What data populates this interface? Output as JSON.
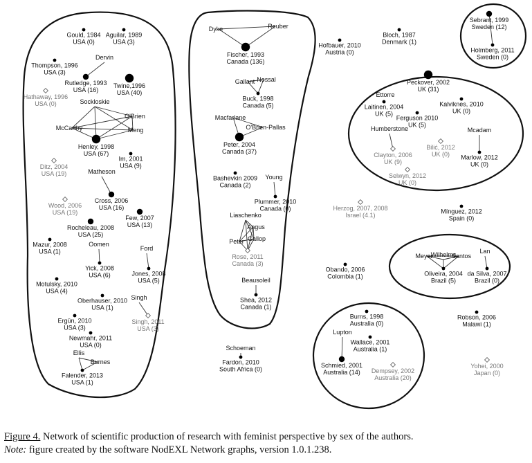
{
  "figure": {
    "groups": [
      {
        "nodes": [
          {
            "id": "gould",
            "lines": [
              "Gould, 1984",
              "USA (0)"
            ],
            "kind": "small"
          },
          {
            "id": "aguilar",
            "lines": [
              "Aguilar, 1989",
              "USA (3)"
            ],
            "kind": "small"
          },
          {
            "id": "thompson",
            "lines": [
              "Thompson, 1996",
              "USA (3)"
            ],
            "kind": "small"
          },
          {
            "id": "dervin",
            "lines": [
              "Dervin"
            ],
            "kind": "none"
          },
          {
            "id": "rutledge",
            "lines": [
              "Rutledge, 1993",
              "USA (16)"
            ],
            "kind": "medium"
          },
          {
            "id": "twine",
            "lines": [
              "Twine,1996",
              "USA (40)"
            ],
            "kind": "large"
          },
          {
            "id": "hathaway",
            "lines": [
              "Hathaway, 1996",
              "USA (0)"
            ],
            "kind": "diamond"
          },
          {
            "id": "sockloskie",
            "lines": [
              "Sockloskie"
            ],
            "kind": "none"
          },
          {
            "id": "obrien",
            "lines": [
              "O'Brien"
            ],
            "kind": "none"
          },
          {
            "id": "mccarthy",
            "lines": [
              "McCarthy"
            ],
            "kind": "none"
          },
          {
            "id": "meng",
            "lines": [
              "Meng"
            ],
            "kind": "none"
          },
          {
            "id": "henley",
            "lines": [
              "Henley, 1998",
              "USA (67)"
            ],
            "kind": "large"
          },
          {
            "id": "im",
            "lines": [
              "Im, 2001",
              "USA (9)"
            ],
            "kind": "small"
          },
          {
            "id": "ditz",
            "lines": [
              "Ditz, 2004",
              "USA (19)"
            ],
            "kind": "diamond"
          },
          {
            "id": "matheson",
            "lines": [
              "Matheson"
            ],
            "kind": "none"
          },
          {
            "id": "cross",
            "lines": [
              "Cross, 2006",
              "USA (16)"
            ],
            "kind": "medium"
          },
          {
            "id": "wood",
            "lines": [
              "Wood, 2006",
              "USA (19)"
            ],
            "kind": "diamond"
          },
          {
            "id": "few",
            "lines": [
              "Few, 2007",
              "USA (13)"
            ],
            "kind": "medium"
          },
          {
            "id": "rocheleau",
            "lines": [
              "Rocheleau, 2008",
              "USA (25)"
            ],
            "kind": "medium"
          },
          {
            "id": "mazur",
            "lines": [
              "Mazur, 2008",
              "USA (1)"
            ],
            "kind": "small"
          },
          {
            "id": "oomen",
            "lines": [
              "Oomen"
            ],
            "kind": "none"
          },
          {
            "id": "ford",
            "lines": [
              "Ford"
            ],
            "kind": "none"
          },
          {
            "id": "yick",
            "lines": [
              "Yick, 2008",
              "USA (6)"
            ],
            "kind": "small"
          },
          {
            "id": "jones",
            "lines": [
              "Jones, 2008",
              "USA (5)"
            ],
            "kind": "small"
          },
          {
            "id": "motulsky",
            "lines": [
              "Motulsky, 2010",
              "USA (4)"
            ],
            "kind": "small"
          },
          {
            "id": "oberhauser",
            "lines": [
              "Oberhauser, 2010",
              "USA (1)"
            ],
            "kind": "small"
          },
          {
            "id": "singhlabel",
            "lines": [
              "Singh"
            ],
            "kind": "none"
          },
          {
            "id": "ergun",
            "lines": [
              "Ergün, 2010",
              "USA (3)"
            ],
            "kind": "small"
          },
          {
            "id": "singh",
            "lines": [
              "Singh, 2011",
              "USA (3)"
            ],
            "kind": "diamond"
          },
          {
            "id": "newmahr",
            "lines": [
              "Newmahr, 2011",
              "USA (0)"
            ],
            "kind": "small"
          },
          {
            "id": "ellis",
            "lines": [
              "Ellis"
            ],
            "kind": "none"
          },
          {
            "id": "burnes",
            "lines": [
              "Burnes"
            ],
            "kind": "none"
          },
          {
            "id": "falender",
            "lines": [
              "Falender, 2013",
              "USA (1)"
            ],
            "kind": "small"
          }
        ]
      },
      {
        "nodes": [
          {
            "id": "dyke",
            "lines": [
              "Dyke"
            ],
            "kind": "none"
          },
          {
            "id": "reuber",
            "lines": [
              "Reuber"
            ],
            "kind": "none"
          },
          {
            "id": "fischer",
            "lines": [
              "Fischer, 1993",
              "Canada (136)"
            ],
            "kind": "large"
          },
          {
            "id": "gallant",
            "lines": [
              "Gallant"
            ],
            "kind": "none"
          },
          {
            "id": "nossal",
            "lines": [
              "Nossal"
            ],
            "kind": "none"
          },
          {
            "id": "buck",
            "lines": [
              "Buck, 1998",
              "Canada (5)"
            ],
            "kind": "small"
          },
          {
            "id": "macfarlane",
            "lines": [
              "Macfarlane"
            ],
            "kind": "none"
          },
          {
            "id": "obrienpallas",
            "lines": [
              "O'Brien-Pallas"
            ],
            "kind": "none"
          },
          {
            "id": "peter2004",
            "lines": [
              "Peter, 2004",
              "Canada (37)"
            ],
            "kind": "large"
          },
          {
            "id": "bashevkin",
            "lines": [
              "Bashevkin 2009",
              "Canada (2)"
            ],
            "kind": "small"
          },
          {
            "id": "young",
            "lines": [
              "Young"
            ],
            "kind": "none"
          },
          {
            "id": "plummer",
            "lines": [
              "Plummer, 2010",
              "Canada (0)"
            ],
            "kind": "small"
          },
          {
            "id": "liaschenko",
            "lines": [
              "Liaschenko"
            ],
            "kind": "none"
          },
          {
            "id": "angus",
            "lines": [
              "Angus"
            ],
            "kind": "none"
          },
          {
            "id": "peterlabel",
            "lines": [
              "Peter"
            ],
            "kind": "none"
          },
          {
            "id": "gallop",
            "lines": [
              "Gallop"
            ],
            "kind": "none"
          },
          {
            "id": "rose",
            "lines": [
              "Rose, 2011",
              "Canada (3)"
            ],
            "kind": "diamond"
          },
          {
            "id": "beausoleil",
            "lines": [
              "Beausoleil"
            ],
            "kind": "none"
          },
          {
            "id": "shea",
            "lines": [
              "Shea, 2012",
              "Canada (1)"
            ],
            "kind": "small"
          }
        ]
      },
      {
        "nodes": [
          {
            "id": "sebrant",
            "lines": [
              "Sebrant, 1999",
              "Sweden (12)"
            ],
            "kind": "medium"
          },
          {
            "id": "holmberg",
            "lines": [
              "Holmberg, 2011",
              "Sweden (0)"
            ],
            "kind": "small"
          }
        ]
      },
      {
        "nodes": [
          {
            "id": "ettorre",
            "lines": [
              "Ettorre"
            ],
            "kind": "none"
          },
          {
            "id": "peckover",
            "lines": [
              "Peckover, 2002",
              "UK (31)"
            ],
            "kind": "large"
          },
          {
            "id": "laitinen",
            "lines": [
              "Laitinen, 2004",
              "UK (5)"
            ],
            "kind": "small"
          },
          {
            "id": "kalvikne",
            "lines": [
              "Kalviknes, 2010",
              "UK (0)"
            ],
            "kind": "small"
          },
          {
            "id": "ferguson",
            "lines": [
              "Ferguson 2010",
              "UK (5)"
            ],
            "kind": "small"
          },
          {
            "id": "humberstone",
            "lines": [
              "Humberstone"
            ],
            "kind": "none"
          },
          {
            "id": "mcadam",
            "lines": [
              "Mcadam"
            ],
            "kind": "none"
          },
          {
            "id": "bilic",
            "lines": [
              "Bilić, 2012",
              "UK (0)"
            ],
            "kind": "diamond"
          },
          {
            "id": "clayton",
            "lines": [
              "Clayton, 2006",
              "UK (9)"
            ],
            "kind": "diamond"
          },
          {
            "id": "marlow",
            "lines": [
              "Marlow, 2012",
              "UK (0)"
            ],
            "kind": "small"
          },
          {
            "id": "selwyn",
            "lines": [
              "Selwyn, 2012",
              "UK (0)"
            ],
            "kind": "diamond"
          }
        ]
      },
      {
        "nodes": [
          {
            "id": "wilhelms",
            "lines": [
              "Wilhelms"
            ],
            "kind": "none"
          },
          {
            "id": "meyer",
            "lines": [
              "Meyer"
            ],
            "kind": "none"
          },
          {
            "id": "santos",
            "lines": [
              "Santos"
            ],
            "kind": "none"
          },
          {
            "id": "oliveira",
            "lines": [
              "Oliveira, 2004",
              "Brazil (5)"
            ],
            "kind": "small"
          },
          {
            "id": "lan",
            "lines": [
              "Lan"
            ],
            "kind": "none"
          },
          {
            "id": "dasilva",
            "lines": [
              "da Silva, 2007",
              "Brazil (0)"
            ],
            "kind": "small"
          }
        ]
      },
      {
        "nodes": [
          {
            "id": "burns",
            "lines": [
              "Burns, 1998",
              "Australia (0)"
            ],
            "kind": "small"
          },
          {
            "id": "lupton",
            "lines": [
              "Lupton"
            ],
            "kind": "none"
          },
          {
            "id": "wallace",
            "lines": [
              "Wallace, 2001",
              "Australia (1)"
            ],
            "kind": "small"
          },
          {
            "id": "schmied",
            "lines": [
              "Schmied, 2001",
              "Australia (14)"
            ],
            "kind": "medium"
          },
          {
            "id": "dempsey",
            "lines": [
              "Dempsey, 2002",
              "Australia (20)"
            ],
            "kind": "diamond"
          }
        ]
      },
      {
        "nodes": [
          {
            "id": "bloch",
            "lines": [
              "Bloch, 1987",
              "Denmark (1)"
            ],
            "kind": "small"
          },
          {
            "id": "hofbauer",
            "lines": [
              "Hofbauer, 2010",
              "Austria (0)"
            ],
            "kind": "small"
          },
          {
            "id": "herzog",
            "lines": [
              "Herzog, 2007, 2008",
              "Israel (4.1)"
            ],
            "kind": "diamond"
          },
          {
            "id": "minguez",
            "lines": [
              "Mínguez, 2012",
              "Spain (0)"
            ],
            "kind": "small"
          },
          {
            "id": "obando",
            "lines": [
              "Obando, 2006",
              "Colombia (1)"
            ],
            "kind": "small"
          },
          {
            "id": "robson",
            "lines": [
              "Robson, 2006",
              "Malawi (1)"
            ],
            "kind": "small"
          },
          {
            "id": "schoeman",
            "lines": [
              "Schoeman"
            ],
            "kind": "none"
          },
          {
            "id": "fardon",
            "lines": [
              "Fardon, 2010",
              "South Africa (0)"
            ],
            "kind": "small"
          },
          {
            "id": "yohei",
            "lines": [
              "Yohei, 2000",
              "Japan (0)"
            ],
            "kind": "diamond"
          }
        ]
      }
    ],
    "edges": [
      [
        "dervin",
        "rutledge"
      ],
      [
        "sockloskie",
        "henley"
      ],
      [
        "obrien",
        "henley"
      ],
      [
        "mccarthy",
        "henley"
      ],
      [
        "meng",
        "henley"
      ],
      [
        "sockloskie",
        "obrien"
      ],
      [
        "sockloskie",
        "meng"
      ],
      [
        "sockloskie",
        "mccarthy"
      ],
      [
        "obrien",
        "meng"
      ],
      [
        "obrien",
        "mccarthy"
      ],
      [
        "meng",
        "mccarthy"
      ],
      [
        "matheson",
        "cross"
      ],
      [
        "oomen",
        "yick"
      ],
      [
        "ford",
        "jones"
      ],
      [
        "singhlabel",
        "singh"
      ],
      [
        "ellis",
        "burnes"
      ],
      [
        "burnes",
        "falender"
      ],
      [
        "ellis",
        "falender"
      ],
      [
        "dyke",
        "reuber"
      ],
      [
        "dyke",
        "fischer"
      ],
      [
        "reuber",
        "fischer"
      ],
      [
        "gallant",
        "nossal"
      ],
      [
        "gallant",
        "buck"
      ],
      [
        "nossal",
        "buck"
      ],
      [
        "macfarlane",
        "obrienpallas"
      ],
      [
        "macfarlane",
        "peter2004"
      ],
      [
        "obrienpallas",
        "peter2004"
      ],
      [
        "young",
        "plummer"
      ],
      [
        "liaschenko",
        "angus"
      ],
      [
        "liaschenko",
        "peterlabel"
      ],
      [
        "liaschenko",
        "gallop"
      ],
      [
        "liaschenko",
        "rose"
      ],
      [
        "angus",
        "peterlabel"
      ],
      [
        "angus",
        "gallop"
      ],
      [
        "angus",
        "rose"
      ],
      [
        "peterlabel",
        "gallop"
      ],
      [
        "peterlabel",
        "rose"
      ],
      [
        "gallop",
        "rose"
      ],
      [
        "beausoleil",
        "shea"
      ],
      [
        "sebrant",
        "holmberg"
      ],
      [
        "ettorre",
        "laitinen"
      ],
      [
        "humberstone",
        "clayton"
      ],
      [
        "mcadam",
        "marlow"
      ],
      [
        "wilhelms",
        "meyer"
      ],
      [
        "wilhelms",
        "santos"
      ],
      [
        "wilhelms",
        "oliveira"
      ],
      [
        "meyer",
        "santos"
      ],
      [
        "meyer",
        "oliveira"
      ],
      [
        "santos",
        "oliveira"
      ],
      [
        "lan",
        "dasilva"
      ],
      [
        "lupton",
        "schmied"
      ],
      [
        "schoeman",
        "fardon"
      ]
    ]
  },
  "caption": {
    "figure_label": "Figure 4.",
    "figure_text": " Network of scientific production of research with feminist perspective by sex of the authors.",
    "note_label": "Note:",
    "note_text": " figure created by the software NodEXL Network graphs, version 1.0.1.238."
  }
}
